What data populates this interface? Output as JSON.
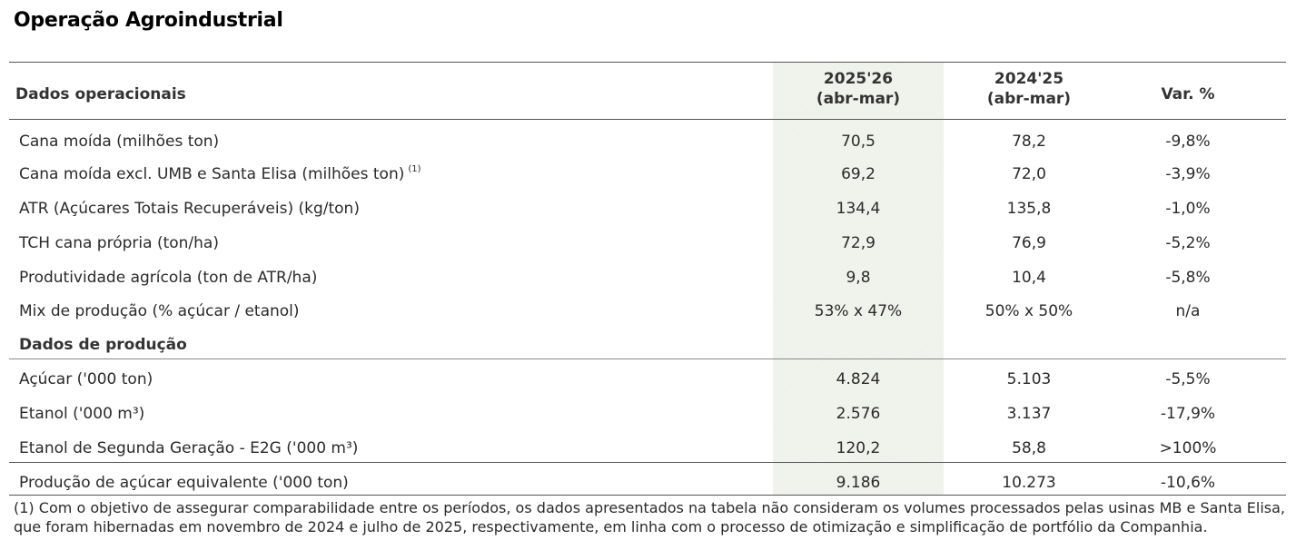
{
  "page_title": "Operação Agroindustrial",
  "table": {
    "header": {
      "label": "Dados operacionais",
      "col1_line1": "2025'26",
      "col1_line2": "(abr-mar)",
      "col2_line1": "2024'25",
      "col2_line2": "(abr-mar)",
      "col3": "Var. %"
    },
    "operational_rows": [
      {
        "label": "Cana moída (milhões ton)",
        "note": "",
        "v2526": "70,5",
        "v2425": "78,2",
        "var": "-9,8%"
      },
      {
        "label": "Cana moída excl. UMB e Santa Elisa (milhões ton)",
        "note": "(1)",
        "v2526": "69,2",
        "v2425": "72,0",
        "var": "-3,9%"
      },
      {
        "label": "ATR (Açúcares Totais Recuperáveis) (kg/ton)",
        "note": "",
        "v2526": "134,4",
        "v2425": "135,8",
        "var": "-1,0%"
      },
      {
        "label": "TCH cana própria (ton/ha)",
        "note": "",
        "v2526": "72,9",
        "v2425": "76,9",
        "var": "-5,2%"
      },
      {
        "label": "Produtividade agrícola (ton de ATR/ha)",
        "note": "",
        "v2526": "9,8",
        "v2425": "10,4",
        "var": "-5,8%"
      },
      {
        "label": "Mix de produção (% açúcar / etanol)",
        "note": "",
        "v2526": "53% x 47%",
        "v2425": "50% x 50%",
        "var": "n/a"
      }
    ],
    "production_section_label": "Dados de produção",
    "production_rows": [
      {
        "label": "Açúcar ('000 ton)",
        "v2526": "4.824",
        "v2425": "5.103",
        "var": "-5,5%"
      },
      {
        "label": "Etanol ('000 m³)",
        "v2526": "2.576",
        "v2425": "3.137",
        "var": "-17,9%"
      },
      {
        "label": "Etanol de Segunda Geração - E2G ('000 m³)",
        "v2526": "120,2",
        "v2425": "58,8",
        "var": ">100%"
      }
    ],
    "total_row": {
      "label": "Produção de açúcar equivalente ('000 ton)",
      "v2526": "9.186",
      "v2425": "10.273",
      "var": "-10,6%"
    }
  },
  "footnote": "(1) Com o objetivo de assegurar comparabilidade entre os períodos, os dados apresentados na tabela não consideram os volumes processados pelas usinas MB e Santa Elisa, que foram hibernadas em novembro de 2024 e julho de 2025, respectivamente, em linha com o processo de otimização e simplificação de portfólio da Companhia."
}
